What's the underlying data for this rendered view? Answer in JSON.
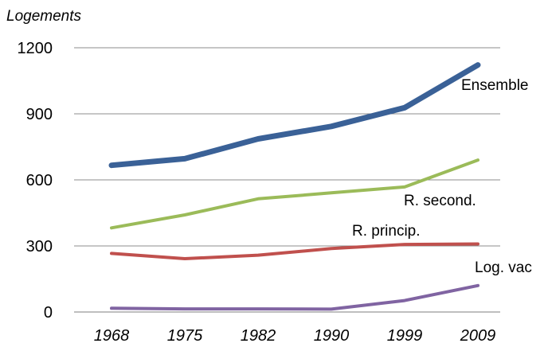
{
  "chart_data": {
    "type": "line",
    "title": "",
    "xlabel": "",
    "ylabel": "Logements",
    "x": [
      "1968",
      "1975",
      "1982",
      "1990",
      "1999",
      "2009"
    ],
    "ylim": [
      0,
      1200
    ],
    "yticks": [
      "0",
      "300",
      "600",
      "900",
      "1200"
    ],
    "grid": "horizontal",
    "series": [
      {
        "name": "Ensemble",
        "color": "#3A6197",
        "values": [
          666,
          696,
          786,
          843,
          928,
          1122
        ]
      },
      {
        "name": "R. second.",
        "color": "#9BBB59",
        "values": [
          382,
          441,
          514,
          541,
          568,
          690
        ]
      },
      {
        "name": "R. princip.",
        "color": "#C0504D",
        "values": [
          266,
          242,
          258,
          288,
          307,
          309
        ]
      },
      {
        "name": "Log. vac",
        "color": "#8064A2",
        "values": [
          17,
          14,
          14,
          13,
          52,
          120
        ]
      }
    ]
  }
}
